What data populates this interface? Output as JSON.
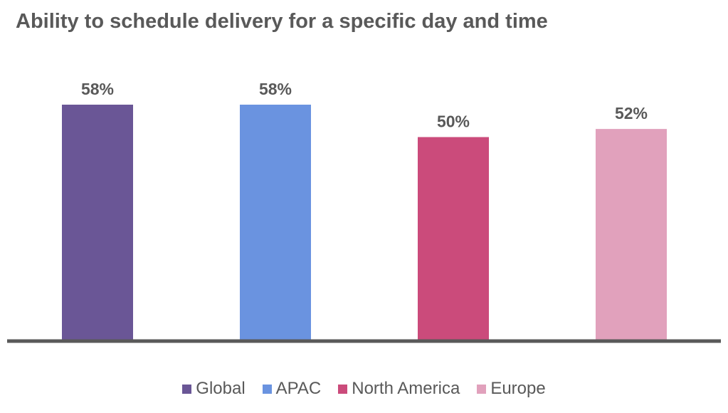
{
  "chart_data": {
    "type": "bar",
    "title": "Ability to schedule delivery for a specific day and time",
    "categories": [
      "Global",
      "APAC",
      "North America",
      "Europe"
    ],
    "values": [
      58,
      58,
      50,
      52
    ],
    "data_labels": [
      "58%",
      "58%",
      "50%",
      "52%"
    ],
    "colors": [
      "#6a5696",
      "#6a93e0",
      "#cb4b7b",
      "#e1a1bc"
    ],
    "axis_color": "#595959",
    "ylim": [
      0,
      100
    ],
    "grid": false,
    "legend": {
      "position": "bottom",
      "entries": [
        "Global",
        "APAC",
        "North America",
        "Europe"
      ]
    }
  }
}
